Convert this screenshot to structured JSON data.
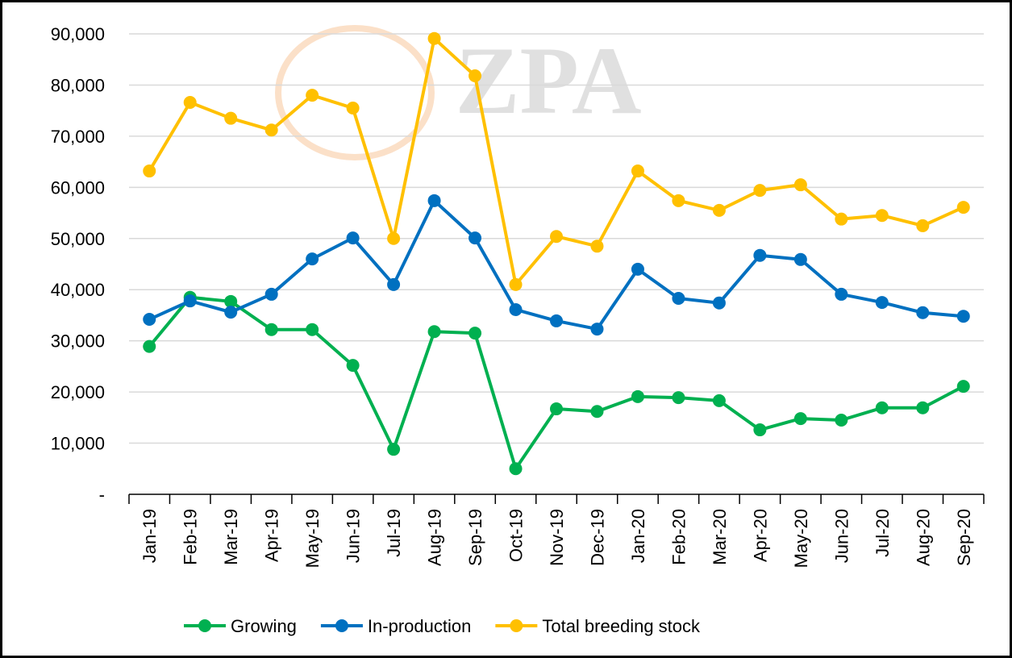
{
  "chart_data": {
    "type": "line",
    "watermark": "ZPA",
    "categories": [
      "Jan-19",
      "Feb-19",
      "Mar-19",
      "Apr-19",
      "May-19",
      "Jun-19",
      "Jul-19",
      "Aug-19",
      "Sep-19",
      "Oct-19",
      "Nov-19",
      "Dec-19",
      "Jan-20",
      "Feb-20",
      "Mar-20",
      "Apr-20",
      "May-20",
      "Jun-20",
      "Jul-20",
      "Aug-20",
      "Sep-20"
    ],
    "series": [
      {
        "name": "Growing",
        "color": "#00b050",
        "values": [
          28900,
          38500,
          37700,
          32200,
          32200,
          25200,
          8800,
          31800,
          31500,
          5000,
          16700,
          16200,
          19100,
          18900,
          18300,
          12600,
          14800,
          14500,
          16900,
          16900,
          21100
        ]
      },
      {
        "name": "In-production",
        "color": "#0070c0",
        "values": [
          34200,
          37800,
          35600,
          39100,
          46000,
          50100,
          41000,
          57400,
          50100,
          36100,
          33900,
          32300,
          44000,
          38300,
          37400,
          46700,
          45900,
          39100,
          37500,
          35500,
          34800
        ]
      },
      {
        "name": "Total breeding stock",
        "color": "#ffc000",
        "values": [
          63200,
          76600,
          73500,
          71200,
          78000,
          75500,
          50000,
          89100,
          81800,
          41000,
          50400,
          48500,
          63200,
          57400,
          55500,
          59400,
          60500,
          53800,
          54500,
          52500,
          56100
        ]
      }
    ],
    "ylim": [
      0,
      90000
    ],
    "yticks": [
      {
        "value": 0,
        "label": "-"
      },
      {
        "value": 10000,
        "label": "10,000"
      },
      {
        "value": 20000,
        "label": "20,000"
      },
      {
        "value": 30000,
        "label": "30,000"
      },
      {
        "value": 40000,
        "label": "40,000"
      },
      {
        "value": 50000,
        "label": "50,000"
      },
      {
        "value": 60000,
        "label": "60,000"
      },
      {
        "value": 70000,
        "label": "70,000"
      },
      {
        "value": 80000,
        "label": "80,000"
      },
      {
        "value": 90000,
        "label": "90,000"
      }
    ],
    "grid": true,
    "legend": "bottom"
  }
}
